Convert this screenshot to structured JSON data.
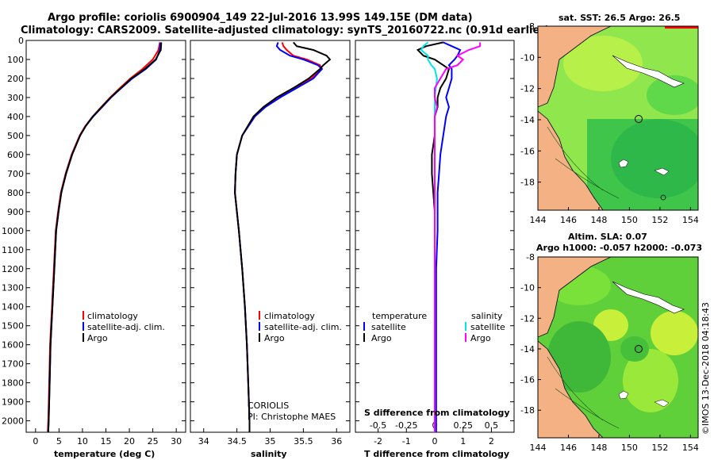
{
  "header": {
    "line1": "Argo profile: coriolis 6900904_149 22-Jul-2016 13.99S 149.15E (DM data)",
    "line2": "Climatology: CARS2009. Satellite-adjusted climatology: synTS_20160722.nc (0.91d earlier)"
  },
  "colors": {
    "climatology": "#ff0000",
    "satellite": "#0000ff",
    "argo": "#000000",
    "satellite_sal_diff": "#00e5e5",
    "argo_sal_diff": "#ff00ff",
    "land": "#f4b183"
  },
  "depth_ticks": [
    "0",
    "100",
    "200",
    "300",
    "400",
    "500",
    "600",
    "700",
    "800",
    "900",
    "1000",
    "1100",
    "1200",
    "1300",
    "1400",
    "1500",
    "1600",
    "1700",
    "1800",
    "1900",
    "2000"
  ],
  "legend": {
    "climatology": "climatology",
    "satellite_adj": "satellite-adj. clim.",
    "argo": "Argo",
    "diff_temperature": "temperature",
    "diff_salinity": "salinity",
    "satellite": "satellite"
  },
  "credits": {
    "agency": "CORIOLIS",
    "pi": "PI: Christophe MAES",
    "imos": "©IMOS 13-Dec-2018 04:18:43"
  },
  "chart_data": [
    {
      "type": "line",
      "id": "temperature",
      "xlabel": "temperature (deg C)",
      "ylabel": "depth",
      "xlim": [
        -2,
        32
      ],
      "ylim": [
        2060,
        0
      ],
      "xticks": [
        "0",
        "5",
        "10",
        "15",
        "20",
        "25",
        "30"
      ],
      "xtick_values": [
        0,
        5,
        10,
        15,
        20,
        25,
        30
      ],
      "depth": [
        10,
        50,
        100,
        150,
        200,
        250,
        300,
        350,
        400,
        450,
        500,
        600,
        700,
        800,
        900,
        1000,
        1200,
        1400,
        1600,
        1800,
        2000,
        2060
      ],
      "series": [
        {
          "name": "climatology",
          "color": "#ff0000",
          "values": [
            26.5,
            26.2,
            25.0,
            22.8,
            20.2,
            18.0,
            15.9,
            14.0,
            12.2,
            10.6,
            9.4,
            7.7,
            6.4,
            5.4,
            4.8,
            4.3,
            3.9,
            3.5,
            3.1,
            2.9,
            2.7,
            2.6
          ]
        },
        {
          "name": "satellite-adj. clim.",
          "color": "#0000ff",
          "values": [
            26.6,
            26.5,
            25.7,
            23.5,
            20.6,
            18.3,
            16.1,
            14.2,
            12.3,
            10.7,
            9.5,
            7.8,
            6.5,
            5.5,
            4.9,
            4.4,
            4.0,
            3.6,
            3.2,
            3.0,
            2.8,
            2.7
          ]
        },
        {
          "name": "Argo",
          "color": "#000000",
          "values": [
            26.8,
            26.7,
            25.6,
            23.3,
            20.4,
            18.2,
            16.0,
            14.1,
            12.2,
            10.7,
            9.5,
            7.8,
            6.5,
            5.5,
            4.9,
            4.4,
            4.0,
            3.6,
            3.2,
            3.0,
            2.8,
            2.7
          ]
        }
      ]
    },
    {
      "type": "line",
      "id": "salinity",
      "xlabel": "salinity",
      "ylabel": "depth",
      "xlim": [
        33.8,
        36.2
      ],
      "ylim": [
        2060,
        0
      ],
      "xticks": [
        "34",
        "34.5",
        "35",
        "35.5",
        "36"
      ],
      "xtick_values": [
        34,
        34.5,
        35,
        35.5,
        36
      ],
      "depth": [
        10,
        30,
        50,
        80,
        100,
        130,
        150,
        200,
        250,
        300,
        350,
        400,
        500,
        600,
        700,
        800,
        900,
        1000,
        1200,
        1400,
        1600,
        1800,
        2000,
        2060
      ],
      "series": [
        {
          "name": "climatology",
          "color": "#ff0000",
          "values": [
            35.18,
            35.2,
            35.25,
            35.35,
            35.55,
            35.75,
            35.78,
            35.62,
            35.35,
            35.1,
            34.9,
            34.75,
            34.58,
            34.5,
            34.48,
            34.47,
            34.5,
            34.53,
            34.58,
            34.62,
            34.65,
            34.67,
            34.69,
            34.69
          ]
        },
        {
          "name": "satellite-adj. clim.",
          "color": "#0000ff",
          "values": [
            35.12,
            35.1,
            35.15,
            35.3,
            35.5,
            35.72,
            35.78,
            35.65,
            35.4,
            35.15,
            34.93,
            34.77,
            34.58,
            34.5,
            34.48,
            34.47,
            34.5,
            34.53,
            34.58,
            34.62,
            34.65,
            34.67,
            34.69,
            34.69
          ]
        },
        {
          "name": "Argo",
          "color": "#000000",
          "values": [
            35.35,
            35.4,
            35.65,
            35.85,
            35.9,
            35.8,
            35.75,
            35.58,
            35.35,
            35.1,
            34.9,
            34.75,
            34.58,
            34.5,
            34.48,
            34.47,
            34.5,
            34.53,
            34.58,
            34.62,
            34.65,
            34.67,
            34.69,
            34.69
          ]
        }
      ]
    },
    {
      "type": "line",
      "id": "differences",
      "xlabel": "T difference from climatology",
      "xlabel_top": "S difference from climatology",
      "ylabel": "depth",
      "xlim": [
        -2.8,
        2.8
      ],
      "ylim": [
        2060,
        0
      ],
      "xticks": [
        "-2",
        "-1",
        "0",
        "1",
        "2"
      ],
      "xtick_values": [
        -2,
        -1,
        0,
        1,
        2
      ],
      "sal_ticks": [
        "-0.5",
        "-0.25",
        "0",
        "0.25",
        "0.5"
      ],
      "sal_tick_values": [
        -0.5,
        -0.25,
        0,
        0.25,
        0.5
      ],
      "sal_scale": 4,
      "depth": [
        10,
        30,
        50,
        80,
        100,
        130,
        150,
        200,
        250,
        300,
        350,
        400,
        500,
        600,
        700,
        800,
        900,
        1000,
        1200,
        1400,
        1600,
        1800,
        2000,
        2060
      ],
      "series": [
        {
          "name": "T satellite",
          "color": "#0000ff",
          "values": [
            0.3,
            0.6,
            0.9,
            0.8,
            0.7,
            0.5,
            0.6,
            0.6,
            0.5,
            0.4,
            0.5,
            0.4,
            0.3,
            0.2,
            0.15,
            0.1,
            0.1,
            0.1,
            0.05,
            0.05,
            0.05,
            0.05,
            0.05,
            0.05
          ]
        },
        {
          "name": "T Argo",
          "color": "#000000",
          "values": [
            0.3,
            -0.3,
            -0.6,
            -0.4,
            0.0,
            0.3,
            0.5,
            0.4,
            0.2,
            0.1,
            0.1,
            0.0,
            0.0,
            -0.1,
            -0.1,
            -0.05,
            0.0,
            0.0,
            0.0,
            0.0,
            0.0,
            0.0,
            0.0,
            0.0
          ]
        },
        {
          "name": "S satellite",
          "color": "#00e5e5",
          "values": [
            -0.06,
            -0.1,
            -0.12,
            -0.06,
            -0.06,
            -0.03,
            0.0,
            0.02,
            0.01,
            0.0,
            0.0,
            0.0,
            0.0,
            0.0,
            0.0,
            0.0,
            0.0,
            0.0,
            0.0,
            0.0,
            0.0,
            0.0,
            0.0,
            0.0
          ]
        },
        {
          "name": "S Argo",
          "color": "#ff00ff",
          "values": [
            0.4,
            0.4,
            0.3,
            0.2,
            0.25,
            0.2,
            0.1,
            0.05,
            0.0,
            0.0,
            0.02,
            0.0,
            0.0,
            0.0,
            0.0,
            0.0,
            0.0,
            0.0,
            0.0,
            0.0,
            0.0,
            0.0,
            0.0,
            0.0
          ]
        }
      ]
    },
    {
      "type": "heatmap",
      "id": "sst_map",
      "title": "sat. SST: 26.5 Argo: 26.5",
      "xlim": [
        144,
        154.5
      ],
      "ylim": [
        -19.8,
        -8
      ],
      "xticks": [
        "144",
        "146",
        "148",
        "150",
        "152",
        "154"
      ],
      "xtick_values": [
        144,
        146,
        148,
        150,
        152,
        154
      ],
      "yticks": [
        "-8",
        "-10",
        "-12",
        "-14",
        "-16",
        "-18"
      ],
      "ytick_values": [
        -8,
        -10,
        -12,
        -14,
        -16,
        -18
      ],
      "float_position": [
        149.15,
        -13.99
      ]
    },
    {
      "type": "heatmap",
      "id": "sla_map",
      "title_line1": "Altim. SLA: 0.07",
      "title_line2": "Argo h1000: -0.057 h2000: -0.073",
      "xlim": [
        144,
        154.5
      ],
      "ylim": [
        -19.8,
        -8
      ],
      "xticks": [
        "144",
        "146",
        "148",
        "150",
        "152",
        "154"
      ],
      "xtick_values": [
        144,
        146,
        148,
        150,
        152,
        154
      ],
      "yticks": [
        "-8",
        "-10",
        "-12",
        "-14",
        "-16",
        "-18"
      ],
      "ytick_values": [
        -8,
        -10,
        -12,
        -14,
        -16,
        -18
      ],
      "float_position": [
        149.15,
        -13.99
      ]
    }
  ]
}
